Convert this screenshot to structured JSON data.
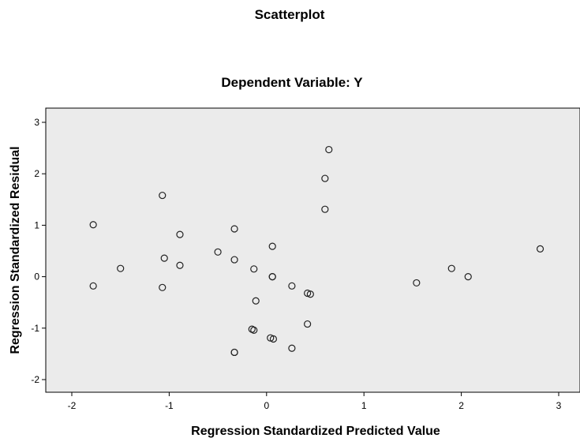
{
  "chart_data": {
    "type": "scatter",
    "title": "Scatterplot",
    "subtitle": "Dependent Variable: Y",
    "xlabel": "Regression Standardized Predicted Value",
    "ylabel": "Regression Standardized Residual",
    "xlim": [
      -2.3,
      3.2
    ],
    "ylim": [
      -2.2,
      3.1
    ],
    "xticks": [
      -2,
      -1,
      0,
      1,
      2,
      3
    ],
    "yticks": [
      -2,
      -1,
      0,
      1,
      2,
      3
    ],
    "xtick_labels": [
      "-2",
      "-1",
      "0",
      "1",
      "2",
      "3"
    ],
    "ytick_labels": [
      "-2",
      "-1",
      "0",
      "1",
      "2",
      "3"
    ],
    "grid": false,
    "plot_background": "#ebebeb",
    "marker": "hollow-circle",
    "points": [
      {
        "x": -1.78,
        "y": 1.01
      },
      {
        "x": -1.78,
        "y": -0.18
      },
      {
        "x": -1.5,
        "y": 0.16
      },
      {
        "x": -1.07,
        "y": 1.58
      },
      {
        "x": -1.05,
        "y": 0.36
      },
      {
        "x": -1.07,
        "y": -0.21
      },
      {
        "x": -0.89,
        "y": 0.82
      },
      {
        "x": -0.89,
        "y": 0.22
      },
      {
        "x": -0.5,
        "y": 0.48
      },
      {
        "x": -0.33,
        "y": 0.93
      },
      {
        "x": -0.33,
        "y": 0.33
      },
      {
        "x": -0.33,
        "y": -1.47
      },
      {
        "x": -0.33,
        "y": -1.47
      },
      {
        "x": -0.13,
        "y": 0.15
      },
      {
        "x": -0.11,
        "y": -0.47
      },
      {
        "x": -0.15,
        "y": -1.02
      },
      {
        "x": -0.13,
        "y": -1.04
      },
      {
        "x": 0.06,
        "y": 0.59
      },
      {
        "x": 0.06,
        "y": 0.0
      },
      {
        "x": 0.06,
        "y": 0.0
      },
      {
        "x": 0.04,
        "y": -1.19
      },
      {
        "x": 0.07,
        "y": -1.21
      },
      {
        "x": 0.26,
        "y": -0.18
      },
      {
        "x": 0.26,
        "y": -1.39
      },
      {
        "x": 0.42,
        "y": -0.32
      },
      {
        "x": 0.45,
        "y": -0.34
      },
      {
        "x": 0.42,
        "y": -0.92
      },
      {
        "x": 0.6,
        "y": 1.31
      },
      {
        "x": 0.6,
        "y": 1.91
      },
      {
        "x": 0.64,
        "y": 2.47
      },
      {
        "x": 1.54,
        "y": -0.12
      },
      {
        "x": 1.9,
        "y": 0.16
      },
      {
        "x": 2.07,
        "y": 0.0
      },
      {
        "x": 2.81,
        "y": 0.54
      }
    ]
  }
}
